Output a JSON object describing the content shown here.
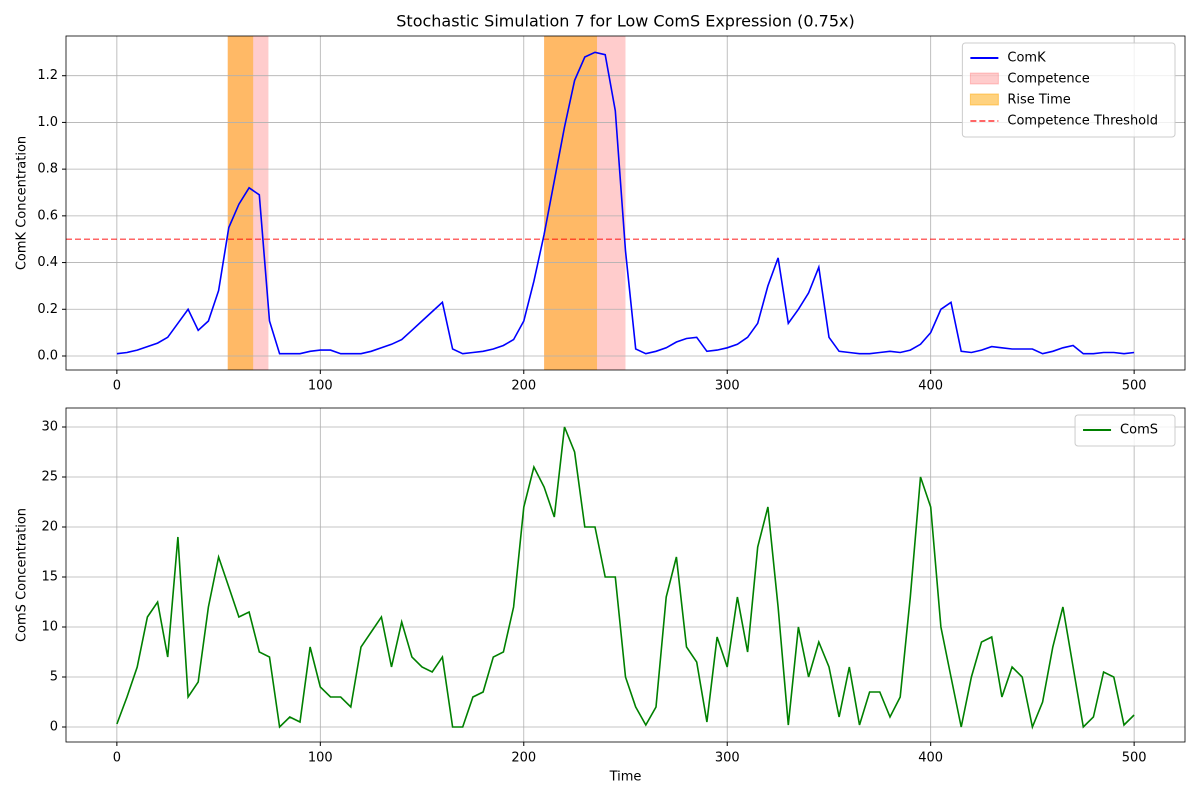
{
  "chart_data": [
    {
      "type": "line",
      "title": "Stochastic Simulation 7 for Low ComS Expression (0.75x)",
      "y_label": "ComK Concentration",
      "x": [
        0,
        5,
        10,
        15,
        20,
        25,
        30,
        35,
        40,
        45,
        50,
        55,
        60,
        65,
        70,
        75,
        80,
        85,
        90,
        95,
        100,
        105,
        110,
        115,
        120,
        125,
        130,
        135,
        140,
        145,
        150,
        155,
        160,
        165,
        170,
        175,
        180,
        185,
        190,
        195,
        200,
        205,
        210,
        215,
        220,
        225,
        230,
        235,
        240,
        245,
        250,
        255,
        260,
        265,
        270,
        275,
        280,
        285,
        290,
        295,
        300,
        305,
        310,
        315,
        320,
        325,
        330,
        335,
        340,
        345,
        350,
        355,
        360,
        365,
        370,
        375,
        380,
        385,
        390,
        395,
        400,
        405,
        410,
        415,
        420,
        425,
        430,
        435,
        440,
        445,
        450,
        455,
        460,
        465,
        470,
        475,
        480,
        485,
        490,
        495,
        500
      ],
      "series": [
        {
          "name": "ComK",
          "color": "#0000ff",
          "values": [
            0.01,
            0.015,
            0.025,
            0.04,
            0.055,
            0.08,
            0.14,
            0.2,
            0.11,
            0.15,
            0.28,
            0.55,
            0.65,
            0.72,
            0.69,
            0.15,
            0.01,
            0.01,
            0.01,
            0.02,
            0.025,
            0.025,
            0.01,
            0.01,
            0.01,
            0.02,
            0.035,
            0.05,
            0.07,
            0.11,
            0.15,
            0.19,
            0.23,
            0.03,
            0.01,
            0.015,
            0.02,
            0.03,
            0.045,
            0.07,
            0.15,
            0.32,
            0.52,
            0.75,
            0.98,
            1.18,
            1.28,
            1.3,
            1.29,
            1.05,
            0.45,
            0.03,
            0.01,
            0.02,
            0.035,
            0.06,
            0.075,
            0.08,
            0.02,
            0.025,
            0.035,
            0.05,
            0.08,
            0.14,
            0.3,
            0.42,
            0.14,
            0.2,
            0.27,
            0.38,
            0.08,
            0.02,
            0.015,
            0.01,
            0.01,
            0.015,
            0.02,
            0.015,
            0.025,
            0.05,
            0.1,
            0.2,
            0.23,
            0.02,
            0.015,
            0.025,
            0.04,
            0.035,
            0.03,
            0.03,
            0.03,
            0.01,
            0.02,
            0.035,
            0.045,
            0.01,
            0.01,
            0.015,
            0.015,
            0.01,
            0.015
          ]
        }
      ],
      "regions": [
        {
          "name": "Competence",
          "color": "#ff0000",
          "alpha": 0.2,
          "ranges": [
            [
              54.5,
              74.5
            ],
            [
              210,
              250
            ]
          ]
        },
        {
          "name": "Rise Time",
          "color": "#ffa500",
          "alpha": 0.5,
          "ranges": [
            [
              54.5,
              67
            ],
            [
              210,
              236
            ]
          ]
        }
      ],
      "hlines": [
        {
          "name": "Competence Threshold",
          "value": 0.5,
          "color": "#ff0000",
          "alpha": 0.6,
          "style": "dashed"
        }
      ],
      "xlim": [
        -25,
        525
      ],
      "xticks": [
        0,
        100,
        200,
        300,
        400,
        500
      ],
      "ylim": [
        -0.06,
        1.37
      ],
      "yticks": [
        {
          "value": 0,
          "label": "0.0"
        },
        0.2,
        0.4,
        0.6,
        0.8,
        {
          "value": 1,
          "label": "1.0"
        },
        1.2
      ],
      "grid": true,
      "legend": "upper right"
    },
    {
      "type": "line",
      "x_label": "Time",
      "y_label": "ComS Concentration",
      "x": [
        0,
        5,
        10,
        15,
        20,
        25,
        30,
        35,
        40,
        45,
        50,
        55,
        60,
        65,
        70,
        75,
        80,
        85,
        90,
        95,
        100,
        105,
        110,
        115,
        120,
        125,
        130,
        135,
        140,
        145,
        150,
        155,
        160,
        165,
        170,
        175,
        180,
        185,
        190,
        195,
        200,
        205,
        210,
        215,
        220,
        225,
        230,
        235,
        240,
        245,
        250,
        255,
        260,
        265,
        270,
        275,
        280,
        285,
        290,
        295,
        300,
        305,
        310,
        315,
        320,
        325,
        330,
        335,
        340,
        345,
        350,
        355,
        360,
        365,
        370,
        375,
        380,
        385,
        390,
        395,
        400,
        405,
        410,
        415,
        420,
        425,
        430,
        435,
        440,
        445,
        450,
        455,
        460,
        465,
        470,
        475,
        480,
        485,
        490,
        495,
        500
      ],
      "series": [
        {
          "name": "ComS",
          "color": "#008000",
          "values": [
            0.3,
            3,
            6,
            11,
            12.5,
            7,
            19,
            3,
            4.5,
            12,
            17,
            14,
            11,
            11.5,
            7.5,
            7,
            0,
            1,
            0.5,
            8,
            4,
            3,
            3,
            2,
            8,
            9.5,
            11,
            6,
            10.5,
            7,
            6,
            5.5,
            7,
            0,
            0,
            3,
            3.5,
            7,
            7.5,
            12,
            22,
            26,
            24,
            21,
            30,
            27.5,
            20,
            20,
            15,
            15,
            5,
            2,
            0.2,
            2,
            13,
            17,
            8,
            6.5,
            0.5,
            9,
            6,
            13,
            7.5,
            18,
            22,
            12,
            0.2,
            10,
            5,
            8.5,
            6,
            1,
            6,
            0.2,
            3.5,
            3.5,
            1,
            3,
            13,
            25,
            22,
            10,
            5,
            0,
            5,
            8.5,
            9,
            3,
            6,
            5,
            0,
            2.5,
            8,
            12,
            6,
            0,
            1,
            5.5,
            5,
            0.2,
            1.2
          ]
        }
      ],
      "xlim": [
        -25,
        525
      ],
      "xticks": [
        0,
        100,
        200,
        300,
        400,
        500
      ],
      "ylim": [
        -1.5,
        31.9
      ],
      "yticks": [
        0,
        5,
        10,
        15,
        20,
        25,
        30
      ],
      "grid": true,
      "legend": "upper right"
    }
  ]
}
